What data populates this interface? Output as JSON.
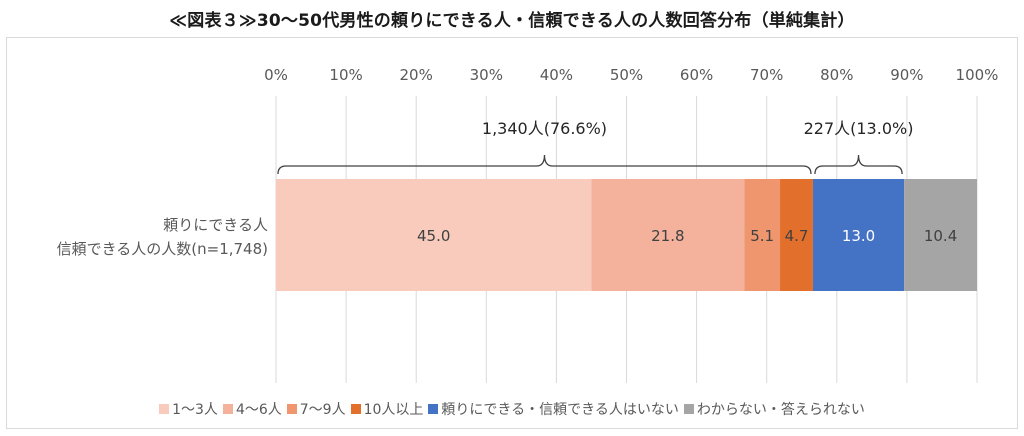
{
  "title": "≪図表３≫30～50代男性の頼りにできる人・信頼できる人の人数回答分布（単純集計）",
  "chart_data": {
    "type": "bar",
    "orientation": "horizontal",
    "stacked": "percent",
    "categories": [
      "頼りにできる人\n信頼できる人の人数(n=1,748)"
    ],
    "x_ticks": [
      "0%",
      "10%",
      "20%",
      "30%",
      "40%",
      "50%",
      "60%",
      "70%",
      "80%",
      "90%",
      "100%"
    ],
    "xlim": [
      0,
      100
    ],
    "grid": true,
    "legend_position": "bottom",
    "series": [
      {
        "name": "1～3人",
        "values": [
          45.0
        ],
        "label": "45.0",
        "color": "#f8cbbd",
        "label_color": "#404040"
      },
      {
        "name": "4～6人",
        "values": [
          21.8
        ],
        "label": "21.8",
        "color": "#f4b29c",
        "label_color": "#404040"
      },
      {
        "name": "7～9人",
        "values": [
          5.1
        ],
        "label": "5.1",
        "color": "#f0966e",
        "label_color": "#404040"
      },
      {
        "name": "10人以上",
        "values": [
          4.7
        ],
        "label": "4.7",
        "color": "#e36f2c",
        "label_color": "#404040"
      },
      {
        "name": "頼りにできる・信頼できる人はいない",
        "values": [
          13.0
        ],
        "label": "13.0",
        "color": "#4472c4",
        "label_color": "#ffffff"
      },
      {
        "name": "わからない・答えられない",
        "values": [
          10.4
        ],
        "label": "10.4",
        "color": "#a5a5a5",
        "label_color": "#404040"
      }
    ],
    "annotations": [
      {
        "text": "1,340人(76.6%)",
        "from": 0,
        "to": 76.6
      },
      {
        "text": "227人(13.0%)",
        "from": 76.6,
        "to": 89.6
      }
    ]
  }
}
